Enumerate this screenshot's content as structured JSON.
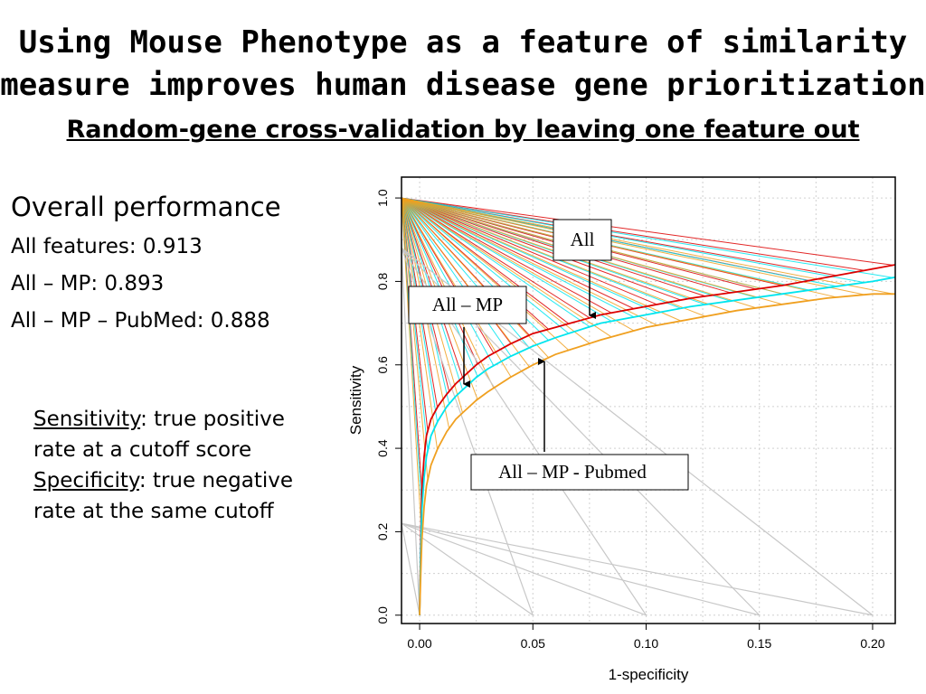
{
  "slide": {
    "title_line1": "Using Mouse Phenotype as a feature of similarity",
    "title_line2": "measure improves human disease gene prioritization",
    "subtitle": "Random-gene cross-validation by leaving one feature out"
  },
  "performance": {
    "heading": "Overall performance",
    "lines": [
      "All features: 0.913",
      "All – MP: 0.893",
      "All – MP – PubMed: 0.888"
    ]
  },
  "definitions": {
    "sensitivity_term": "Sensitivity",
    "sensitivity_text": ": true positive rate at a cutoff score",
    "specificity_term": "Specificity",
    "specificity_text": ": true negative rate at the same cutoff"
  },
  "chart_data": {
    "type": "line",
    "xlabel": "1-specificity",
    "ylabel": "Sensitivity",
    "xlim": [
      -0.008,
      0.21
    ],
    "ylim": [
      -0.02,
      1.05
    ],
    "x_ticks": [
      "0.00",
      "0.05",
      "0.10",
      "0.15",
      "0.20"
    ],
    "y_ticks": [
      "0.0",
      "0.2",
      "0.4",
      "0.6",
      "0.8",
      "1.0"
    ],
    "grid": true,
    "series": [
      {
        "name": "All",
        "color": "#dd0000",
        "x": [
          0.0,
          0.0005,
          0.001,
          0.002,
          0.003,
          0.005,
          0.008,
          0.012,
          0.016,
          0.02,
          0.025,
          0.03,
          0.04,
          0.05,
          0.06,
          0.08,
          0.1,
          0.12,
          0.14,
          0.16,
          0.18,
          0.2,
          0.21
        ],
        "y": [
          0.0,
          0.18,
          0.3,
          0.38,
          0.43,
          0.47,
          0.5,
          0.53,
          0.555,
          0.575,
          0.6,
          0.62,
          0.65,
          0.675,
          0.69,
          0.72,
          0.74,
          0.76,
          0.775,
          0.79,
          0.81,
          0.83,
          0.84
        ]
      },
      {
        "name": "All – MP",
        "color": "#00e5ee",
        "x": [
          0.0,
          0.0005,
          0.001,
          0.002,
          0.003,
          0.005,
          0.008,
          0.012,
          0.016,
          0.02,
          0.025,
          0.03,
          0.04,
          0.05,
          0.06,
          0.08,
          0.1,
          0.12,
          0.14,
          0.16,
          0.18,
          0.2,
          0.21
        ],
        "y": [
          0.0,
          0.15,
          0.25,
          0.33,
          0.38,
          0.43,
          0.465,
          0.5,
          0.525,
          0.545,
          0.57,
          0.59,
          0.62,
          0.645,
          0.665,
          0.7,
          0.72,
          0.74,
          0.755,
          0.77,
          0.785,
          0.8,
          0.81
        ]
      },
      {
        "name": "All – MP - Pubmed",
        "color": "#f0a020",
        "x": [
          0.0,
          0.0005,
          0.001,
          0.002,
          0.003,
          0.005,
          0.008,
          0.012,
          0.016,
          0.02,
          0.025,
          0.03,
          0.04,
          0.05,
          0.06,
          0.08,
          0.1,
          0.12,
          0.14,
          0.16,
          0.18,
          0.2,
          0.21
        ],
        "y": [
          0.0,
          0.1,
          0.18,
          0.26,
          0.31,
          0.36,
          0.4,
          0.44,
          0.47,
          0.49,
          0.515,
          0.535,
          0.57,
          0.6,
          0.625,
          0.66,
          0.69,
          0.71,
          0.73,
          0.745,
          0.76,
          0.77,
          0.77
        ]
      }
    ],
    "annotations": [
      {
        "text": "All",
        "target_series": 0
      },
      {
        "text": "All – MP",
        "target_series": 1
      },
      {
        "text": "All – MP - Pubmed",
        "target_series": 2
      }
    ]
  }
}
